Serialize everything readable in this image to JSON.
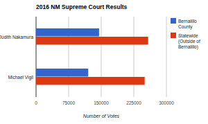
{
  "chart_data": {
    "type": "bar",
    "orientation": "horizontal",
    "title": "2016 NM Supreme Court Results",
    "x_label": "Number of Votes",
    "categories": [
      "Judith Nakamura",
      "Michael Vigil"
    ],
    "series": [
      {
        "name": "Bernalillo County",
        "color": "#3366cc",
        "values": [
          145000,
          120000
        ]
      },
      {
        "name": "Statewide (Outside of Bernalillo)",
        "color": "#dc3912",
        "values": [
          258000,
          250000
        ]
      }
    ],
    "xlim": [
      0,
      300000
    ],
    "xticks": [
      0,
      75000,
      150000,
      225000,
      300000
    ],
    "grid": true,
    "legend": "right"
  }
}
